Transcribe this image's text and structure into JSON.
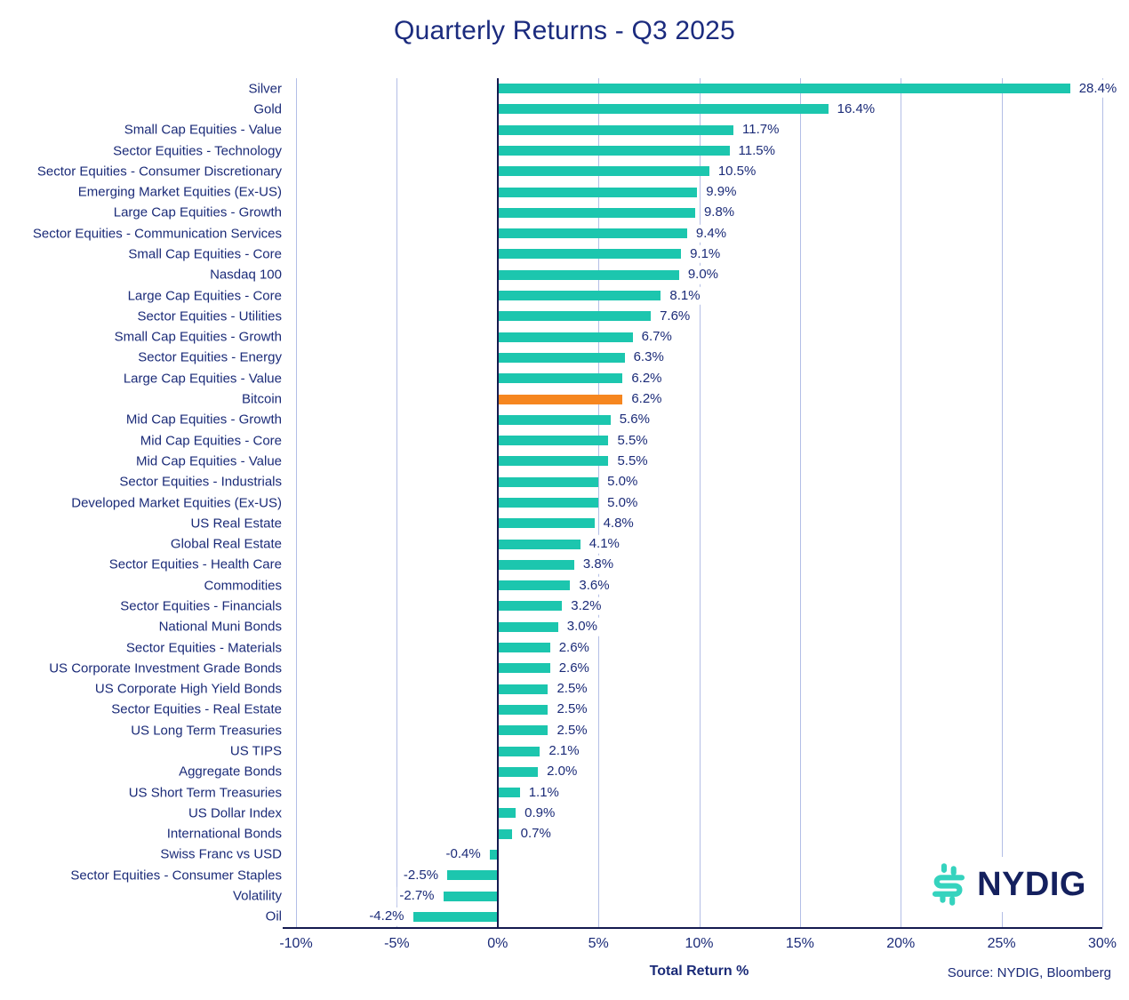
{
  "title": "Quarterly Returns - Q3 2025",
  "xlabel": "Total Return %",
  "source": "Source: NYDIG, Bloomberg",
  "logo_text": "NYDIG",
  "colors": {
    "bar": "#1cc6ae",
    "highlight": "#f6861f",
    "text": "#1b2b78",
    "axis": "#141a4f",
    "grid": "#b3bee6",
    "logo_teal": "#35d3be",
    "logo_navy": "#14205e"
  },
  "chart_data": {
    "type": "bar",
    "orientation": "horizontal",
    "title": "Quarterly Returns - Q3 2025",
    "xlabel": "Total Return %",
    "xlim": [
      -10,
      30
    ],
    "grid": true,
    "x_tick_values": [
      -10,
      -5,
      0,
      5,
      10,
      15,
      20,
      25,
      30
    ],
    "x_tick_labels": [
      "-10%",
      "-5%",
      "0%",
      "5%",
      "10%",
      "15%",
      "20%",
      "25%",
      "30%"
    ],
    "highlight_category": "Bitcoin",
    "categories": [
      "Silver",
      "Gold",
      "Small Cap Equities - Value",
      "Sector Equities - Technology",
      "Sector Equities - Consumer Discretionary",
      "Emerging Market Equities (Ex-US)",
      "Large Cap Equities - Growth",
      "Sector Equities - Communication Services",
      "Small Cap Equities - Core",
      "Nasdaq 100",
      "Large Cap Equities - Core",
      "Sector Equities - Utilities",
      "Small Cap Equities - Growth",
      "Sector Equities - Energy",
      "Large Cap Equities - Value",
      "Bitcoin",
      "Mid Cap Equities - Growth",
      "Mid Cap Equities - Core",
      "Mid Cap Equities - Value",
      "Sector Equities - Industrials",
      "Developed Market Equities (Ex-US)",
      "US Real Estate",
      "Global Real Estate",
      "Sector Equities - Health Care",
      "Commodities",
      "Sector Equities - Financials",
      "National Muni Bonds",
      "Sector Equities - Materials",
      "US Corporate Investment Grade Bonds",
      "US Corporate High Yield Bonds",
      "Sector Equities - Real Estate",
      "US Long Term Treasuries",
      "US TIPS",
      "Aggregate Bonds",
      "US Short Term Treasuries",
      "US Dollar Index",
      "International Bonds",
      "Swiss Franc vs USD",
      "Sector Equities - Consumer Staples",
      "Volatility",
      "Oil"
    ],
    "values": [
      28.4,
      16.4,
      11.7,
      11.5,
      10.5,
      9.9,
      9.8,
      9.4,
      9.1,
      9.0,
      8.1,
      7.6,
      6.7,
      6.3,
      6.2,
      6.2,
      5.6,
      5.5,
      5.5,
      5.0,
      5.0,
      4.8,
      4.1,
      3.8,
      3.6,
      3.2,
      3.0,
      2.6,
      2.6,
      2.5,
      2.5,
      2.5,
      2.1,
      2.0,
      1.1,
      0.9,
      0.7,
      -0.4,
      -2.5,
      -2.7,
      -4.2
    ],
    "labels": [
      "28.4%",
      "16.4%",
      "11.7%",
      "11.5%",
      "10.5%",
      "9.9%",
      "9.8%",
      "9.4%",
      "9.1%",
      "9.0%",
      "8.1%",
      "7.6%",
      "6.7%",
      "6.3%",
      "6.2%",
      "6.2%",
      "5.6%",
      "5.5%",
      "5.5%",
      "5.0%",
      "5.0%",
      "4.8%",
      "4.1%",
      "3.8%",
      "3.6%",
      "3.2%",
      "3.0%",
      "2.6%",
      "2.6%",
      "2.5%",
      "2.5%",
      "2.5%",
      "2.1%",
      "2.0%",
      "1.1%",
      "0.9%",
      "0.7%",
      "-0.4%",
      "-2.5%",
      "-2.7%",
      "-4.2%"
    ]
  }
}
